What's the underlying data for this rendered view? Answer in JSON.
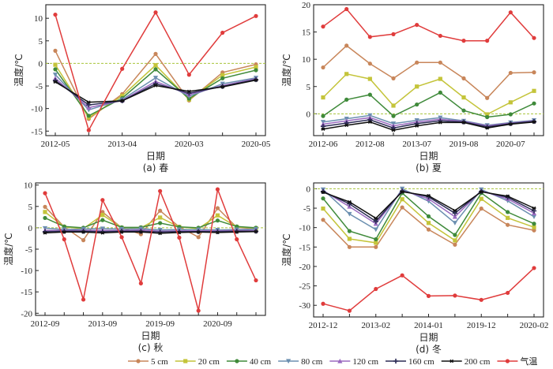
{
  "series_styles": [
    {
      "name": "5 cm",
      "color": "#c8865a",
      "marker": "circle"
    },
    {
      "name": "20 cm",
      "color": "#c4c43a",
      "marker": "square"
    },
    {
      "name": "40 cm",
      "color": "#3f8a3a",
      "marker": "circle"
    },
    {
      "name": "80 cm",
      "color": "#6b8fb0",
      "marker": "tri-down"
    },
    {
      "name": "120 cm",
      "color": "#9a6ac0",
      "marker": "tri-up"
    },
    {
      "name": "160 cm",
      "color": "#2b2b55",
      "marker": "plus"
    },
    {
      "name": "200 cm",
      "color": "#111111",
      "marker": "star"
    },
    {
      "name": "气温",
      "color": "#e03c3c",
      "marker": "circle"
    }
  ],
  "legend": {
    "entries": [
      "5 cm",
      "20 cm",
      "40 cm",
      "80 cm",
      "120 cm",
      "160 cm",
      "200 cm",
      "气温"
    ],
    "placement": "bottom-center"
  },
  "zero_line_color": "#a8c43a",
  "chart_data": [
    {
      "type": "line",
      "panel": "a",
      "caption": "(a) 春",
      "xlabel": "日期",
      "ylabel": "温度/℃",
      "ylim": [
        -16,
        13
      ],
      "yticks": [
        -15,
        -10,
        -5,
        0,
        5,
        10
      ],
      "n_points": 7,
      "xtick_labels": [
        {
          "index": 0,
          "label": "2012-05"
        },
        {
          "index": 2,
          "label": "2013-04"
        },
        {
          "index": 4,
          "label": "2020-03"
        },
        {
          "index": 6,
          "label": "2020-05"
        }
      ],
      "reference_line": 0,
      "series": [
        {
          "name": "5 cm",
          "values": [
            2.8,
            -12.3,
            -6.8,
            2.1,
            -8.2,
            -2.0,
            -0.2
          ]
        },
        {
          "name": "20 cm",
          "values": [
            -0.3,
            -12.0,
            -7.2,
            -0.4,
            -8.0,
            -2.6,
            -0.8
          ]
        },
        {
          "name": "40 cm",
          "values": [
            -1.3,
            -11.6,
            -7.7,
            -1.3,
            -7.8,
            -3.3,
            -1.5
          ]
        },
        {
          "name": "80 cm",
          "values": [
            -2.5,
            -10.3,
            -8.0,
            -3.2,
            -7.3,
            -4.5,
            -3.2
          ]
        },
        {
          "name": "120 cm",
          "values": [
            -3.3,
            -9.8,
            -8.2,
            -4.0,
            -6.9,
            -4.9,
            -3.4
          ]
        },
        {
          "name": "160 cm",
          "values": [
            -3.8,
            -9.2,
            -8.3,
            -4.5,
            -6.6,
            -5.1,
            -3.6
          ]
        },
        {
          "name": "200 cm",
          "values": [
            -4.1,
            -8.6,
            -8.3,
            -4.9,
            -6.2,
            -5.2,
            -3.7
          ]
        },
        {
          "name": "气温",
          "values": [
            10.8,
            -14.8,
            -1.2,
            11.3,
            -2.5,
            6.8,
            10.5
          ]
        }
      ]
    },
    {
      "type": "line",
      "panel": "b",
      "caption": "(b) 夏",
      "xlabel": "日期",
      "ylabel": "温度/℃",
      "ylim": [
        -4,
        20
      ],
      "yticks": [
        0,
        5,
        10,
        15,
        20
      ],
      "n_points": 10,
      "xtick_labels": [
        {
          "index": 0,
          "label": "2012-06"
        },
        {
          "index": 2,
          "label": "2012-08"
        },
        {
          "index": 4,
          "label": "2013-07"
        },
        {
          "index": 6,
          "label": "2019-08"
        },
        {
          "index": 8,
          "label": "2020-07"
        }
      ],
      "reference_line": 0,
      "series": [
        {
          "name": "5 cm",
          "values": [
            8.5,
            12.5,
            9.2,
            6.5,
            9.4,
            9.4,
            6.5,
            2.9,
            7.5,
            7.6
          ]
        },
        {
          "name": "20 cm",
          "values": [
            3.0,
            7.3,
            6.4,
            1.5,
            5.0,
            6.4,
            3.0,
            -0.1,
            2.1,
            4.2
          ]
        },
        {
          "name": "40 cm",
          "values": [
            -0.4,
            2.6,
            3.5,
            -0.4,
            1.7,
            3.9,
            0.6,
            -0.6,
            -0.1,
            1.9
          ]
        },
        {
          "name": "80 cm",
          "values": [
            -1.5,
            -0.9,
            -0.3,
            -1.8,
            -1.2,
            -0.7,
            -1.3,
            -2.1,
            -1.6,
            -1.2
          ]
        },
        {
          "name": "120 cm",
          "values": [
            -1.9,
            -1.3,
            -0.7,
            -2.2,
            -1.5,
            -1.0,
            -1.4,
            -2.2,
            -1.7,
            -1.3
          ]
        },
        {
          "name": "160 cm",
          "values": [
            -2.3,
            -1.7,
            -1.1,
            -2.6,
            -1.8,
            -1.3,
            -1.5,
            -2.4,
            -1.8,
            -1.4
          ]
        },
        {
          "name": "200 cm",
          "values": [
            -2.8,
            -2.1,
            -1.5,
            -3.0,
            -2.2,
            -1.6,
            -1.6,
            -2.6,
            -1.9,
            -1.5
          ]
        },
        {
          "name": "气温",
          "values": [
            16.0,
            19.2,
            14.1,
            14.6,
            16.3,
            14.3,
            13.4,
            13.4,
            18.6,
            13.9
          ]
        }
      ]
    },
    {
      "type": "line",
      "panel": "c",
      "caption": "(c) 秋",
      "xlabel": "日期",
      "ylabel": "温度/℃",
      "ylim": [
        -20.5,
        10.5
      ],
      "yticks": [
        -20,
        -15,
        -10,
        -5,
        0,
        5,
        10
      ],
      "n_points": 12,
      "xtick_labels": [
        {
          "index": 0,
          "label": "2012-09"
        },
        {
          "index": 3,
          "label": "2013-09"
        },
        {
          "index": 6,
          "label": "2019-09"
        },
        {
          "index": 9,
          "label": "2020-09"
        }
      ],
      "reference_line": 0,
      "series": [
        {
          "name": "5 cm",
          "values": [
            4.9,
            0.2,
            -2.9,
            3.7,
            0.0,
            -1.5,
            4.0,
            0.2,
            -2.2,
            4.6,
            0.1,
            -0.2
          ]
        },
        {
          "name": "20 cm",
          "values": [
            3.7,
            0.2,
            -0.2,
            3.0,
            0.0,
            0.0,
            2.4,
            0.2,
            -0.2,
            2.9,
            0.2,
            -0.1
          ]
        },
        {
          "name": "40 cm",
          "values": [
            2.3,
            0.3,
            0.0,
            1.8,
            0.1,
            0.1,
            1.1,
            0.2,
            0.0,
            1.7,
            0.3,
            0.0
          ]
        },
        {
          "name": "80 cm",
          "values": [
            -0.1,
            -0.4,
            -0.3,
            -0.2,
            -0.3,
            -0.2,
            -0.5,
            -0.4,
            -0.4,
            -0.5,
            -0.4,
            -0.3
          ]
        },
        {
          "name": "120 cm",
          "values": [
            -0.6,
            -0.6,
            -0.6,
            -0.6,
            -0.6,
            -0.5,
            -0.8,
            -0.7,
            -0.7,
            -0.7,
            -0.6,
            -0.6
          ]
        },
        {
          "name": "160 cm",
          "values": [
            -0.9,
            -0.8,
            -0.8,
            -0.9,
            -0.8,
            -0.8,
            -1.0,
            -0.9,
            -0.9,
            -0.9,
            -0.8,
            -0.8
          ]
        },
        {
          "name": "200 cm",
          "values": [
            -1.2,
            -1.0,
            -1.0,
            -1.2,
            -1.0,
            -1.0,
            -1.3,
            -1.1,
            -1.0,
            -1.1,
            -1.0,
            -0.9
          ]
        },
        {
          "name": "气温",
          "values": [
            8.1,
            -2.7,
            -16.8,
            6.5,
            -2.2,
            -13.0,
            8.6,
            -2.3,
            -19.4,
            9.0,
            -2.7,
            -12.3
          ]
        }
      ]
    },
    {
      "type": "line",
      "panel": "d",
      "caption": "(d) 冬",
      "xlabel": "日期",
      "ylabel": "温度/℃",
      "ylim": [
        -33,
        1.5
      ],
      "yticks": [
        -30,
        -25,
        -20,
        -15,
        -10,
        -5,
        0
      ],
      "n_points": 9,
      "xtick_labels": [
        {
          "index": 0,
          "label": "2012-12"
        },
        {
          "index": 2,
          "label": "2013-02"
        },
        {
          "index": 4,
          "label": "2014-01"
        },
        {
          "index": 6,
          "label": "2019-12"
        },
        {
          "index": 8,
          "label": "2020-02"
        }
      ],
      "reference_line": 0,
      "series": [
        {
          "name": "5 cm",
          "values": [
            -8.0,
            -15.0,
            -15.0,
            -4.8,
            -10.5,
            -14.4,
            -5.1,
            -9.3,
            -10.7
          ]
        },
        {
          "name": "20 cm",
          "values": [
            -5.1,
            -12.9,
            -13.9,
            -2.7,
            -8.8,
            -13.3,
            -2.6,
            -7.5,
            -9.9
          ]
        },
        {
          "name": "40 cm",
          "values": [
            -2.5,
            -10.9,
            -13.0,
            -1.1,
            -7.1,
            -11.9,
            -1.1,
            -6.0,
            -9.0
          ]
        },
        {
          "name": "80 cm",
          "values": [
            -0.2,
            -6.5,
            -10.5,
            0.0,
            -3.2,
            -8.8,
            -0.2,
            -3.1,
            -7.2
          ]
        },
        {
          "name": "120 cm",
          "values": [
            -0.5,
            -4.6,
            -9.0,
            -0.4,
            -2.6,
            -7.2,
            -0.5,
            -2.6,
            -6.3
          ]
        },
        {
          "name": "160 cm",
          "values": [
            -0.7,
            -3.9,
            -8.4,
            -0.6,
            -2.1,
            -6.3,
            -0.7,
            -2.2,
            -5.7
          ]
        },
        {
          "name": "200 cm",
          "values": [
            -0.9,
            -3.4,
            -7.6,
            -0.8,
            -1.8,
            -5.6,
            -0.8,
            -1.9,
            -5.0
          ]
        },
        {
          "name": "气温",
          "values": [
            -29.6,
            -31.4,
            -25.8,
            -22.3,
            -27.6,
            -27.5,
            -28.6,
            -26.8,
            -20.4
          ]
        }
      ]
    }
  ]
}
